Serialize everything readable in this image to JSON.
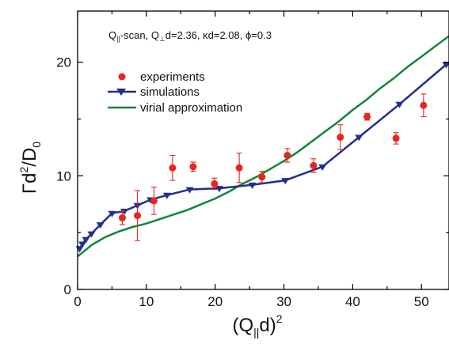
{
  "chart_data": {
    "type": "scatter",
    "title": "",
    "annotation_parts": {
      "q": "Q",
      "par_sub": "||",
      "scan": "-scan, Q",
      "perp_sub": "⊥",
      "rest": "d=2.36, κd=2.08, ϕ=0.3"
    },
    "xlabel_parts": {
      "open": "(Q",
      "sub": "||",
      "mid": "d)",
      "sup": "2"
    },
    "ylabel_parts": {
      "gamma": "Γd",
      "sup": "2",
      "mid": "/D",
      "sub": "0"
    },
    "xlim": [
      0,
      54
    ],
    "ylim": [
      0,
      24.5
    ],
    "x_ticks": [
      0,
      10,
      20,
      30,
      40,
      50
    ],
    "y_ticks": [
      0,
      10,
      20
    ],
    "grid": false,
    "legend_position": "top-left",
    "series": [
      {
        "name": "experiments",
        "kind": "points_with_error_bars",
        "color": "#e8251f",
        "points": [
          {
            "x": 6.5,
            "y": 6.3,
            "err": 0.6
          },
          {
            "x": 8.7,
            "y": 6.5,
            "err": 2.2
          },
          {
            "x": 11.1,
            "y": 7.8,
            "err": 1.2
          },
          {
            "x": 13.8,
            "y": 10.7,
            "err": 1.1
          },
          {
            "x": 16.8,
            "y": 10.8,
            "err": 0.4
          },
          {
            "x": 19.9,
            "y": 9.3,
            "err": 0.5
          },
          {
            "x": 23.5,
            "y": 10.7,
            "err": 1.3
          },
          {
            "x": 26.8,
            "y": 9.9,
            "err": 0.5
          },
          {
            "x": 30.5,
            "y": 11.8,
            "err": 0.6
          },
          {
            "x": 34.3,
            "y": 10.9,
            "err": 0.6
          },
          {
            "x": 38.2,
            "y": 13.4,
            "err": 1.1
          },
          {
            "x": 42.1,
            "y": 15.2,
            "err": 0.3
          },
          {
            "x": 46.3,
            "y": 13.3,
            "err": 0.5
          },
          {
            "x": 50.3,
            "y": 16.2,
            "err": 1.0
          }
        ]
      },
      {
        "name": "simulations",
        "kind": "line_with_triangle_markers",
        "color": "#232f8e",
        "points": [
          {
            "x": 0.3,
            "y": 3.6
          },
          {
            "x": 0.7,
            "y": 4.0
          },
          {
            "x": 1.2,
            "y": 4.4
          },
          {
            "x": 2.0,
            "y": 4.9
          },
          {
            "x": 3.3,
            "y": 5.7
          },
          {
            "x": 5.0,
            "y": 6.7
          },
          {
            "x": 6.8,
            "y": 6.9
          },
          {
            "x": 8.7,
            "y": 7.4
          },
          {
            "x": 10.6,
            "y": 7.9
          },
          {
            "x": 13.0,
            "y": 8.3
          },
          {
            "x": 16.3,
            "y": 8.8
          },
          {
            "x": 20.6,
            "y": 8.9
          },
          {
            "x": 25.4,
            "y": 9.2
          },
          {
            "x": 30.2,
            "y": 9.6
          },
          {
            "x": 35.6,
            "y": 10.8
          },
          {
            "x": 40.9,
            "y": 13.4
          },
          {
            "x": 46.8,
            "y": 16.3
          },
          {
            "x": 53.6,
            "y": 19.8
          }
        ]
      },
      {
        "name": "virial approximation",
        "kind": "line",
        "color": "#12853a",
        "points": [
          {
            "x": 0,
            "y": 2.9
          },
          {
            "x": 2,
            "y": 3.9
          },
          {
            "x": 4,
            "y": 4.6
          },
          {
            "x": 6,
            "y": 5.1
          },
          {
            "x": 8,
            "y": 5.5
          },
          {
            "x": 10,
            "y": 5.8
          },
          {
            "x": 12,
            "y": 6.2
          },
          {
            "x": 14,
            "y": 6.6
          },
          {
            "x": 16,
            "y": 7.0
          },
          {
            "x": 18,
            "y": 7.5
          },
          {
            "x": 20,
            "y": 8.0
          },
          {
            "x": 22,
            "y": 8.6
          },
          {
            "x": 24,
            "y": 9.3
          },
          {
            "x": 26,
            "y": 9.9
          },
          {
            "x": 28,
            "y": 10.6
          },
          {
            "x": 30,
            "y": 11.3
          },
          {
            "x": 32,
            "y": 12.1
          },
          {
            "x": 34,
            "y": 13.0
          },
          {
            "x": 36,
            "y": 13.9
          },
          {
            "x": 38,
            "y": 14.8
          },
          {
            "x": 40,
            "y": 15.8
          },
          {
            "x": 42,
            "y": 16.7
          },
          {
            "x": 44,
            "y": 17.7
          },
          {
            "x": 46,
            "y": 18.6
          },
          {
            "x": 48,
            "y": 19.6
          },
          {
            "x": 50,
            "y": 20.5
          },
          {
            "x": 52,
            "y": 21.4
          },
          {
            "x": 54,
            "y": 22.3
          }
        ]
      }
    ]
  }
}
